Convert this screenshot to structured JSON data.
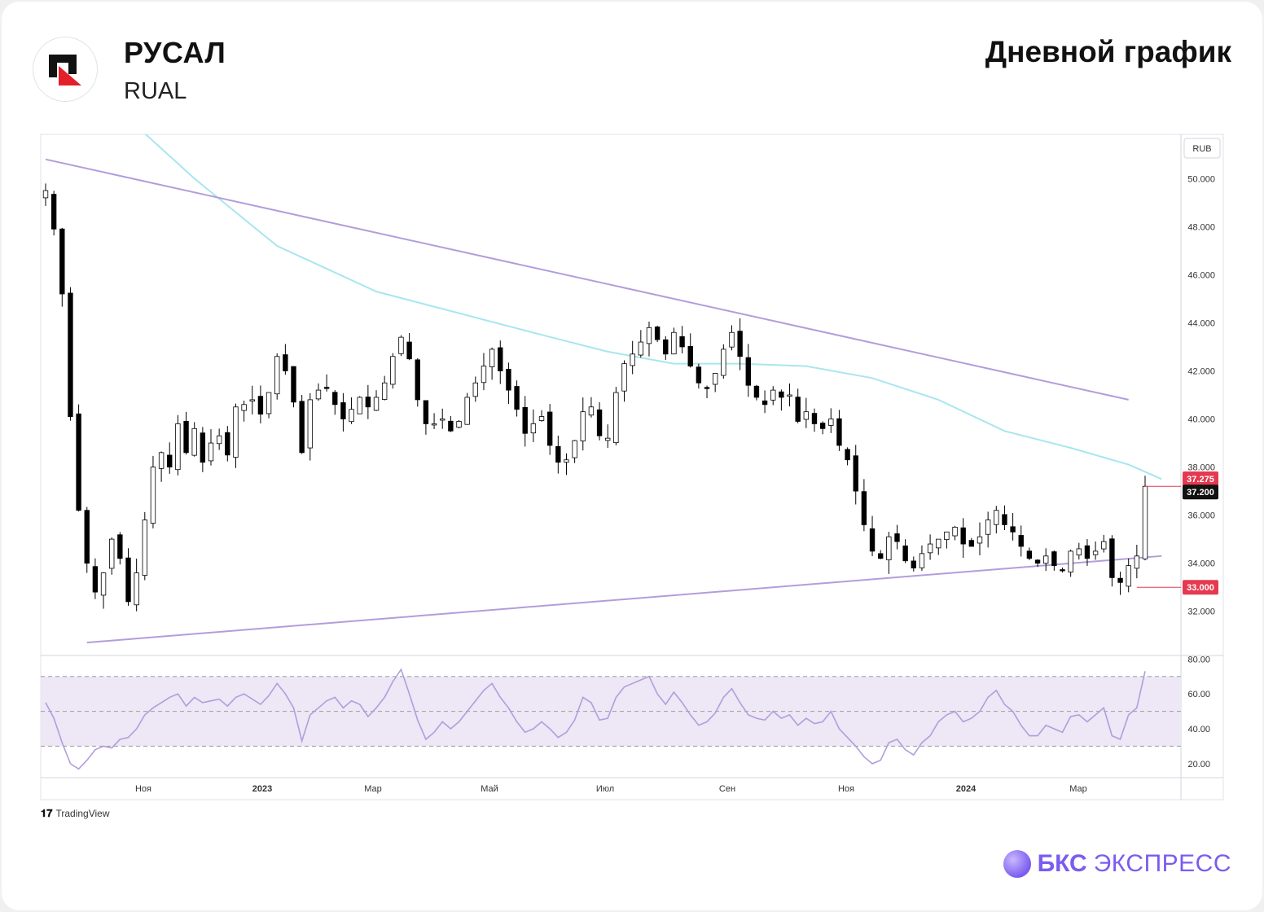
{
  "header": {
    "company_name": "РУСАЛ",
    "ticker": "RUAL",
    "chart_title": "Дневной график"
  },
  "footer": {
    "tradingview_label": "TradingView",
    "brand_bold": "БКС",
    "brand_light": "ЭКСПРЕСС"
  },
  "colors": {
    "candle_up": "#ffffff",
    "candle_down": "#000000",
    "trendline": "#b39ddb",
    "moving_average": "#a8e6ef",
    "rsi_line": "#b39ddb",
    "rsi_band": "#ede7f6",
    "price_tag_red": "#e53950",
    "price_tag_black": "#111111",
    "logo_red": "#e3202a"
  },
  "chart_data": {
    "type": "candlestick",
    "currency_label": "RUB",
    "price_axis": {
      "ylim": [
        30.5,
        51.5
      ],
      "ticks": [
        "50.000",
        "48.000",
        "46.000",
        "44.000",
        "42.000",
        "40.000",
        "38.000",
        "36.000",
        "34.000",
        "32.000"
      ]
    },
    "time_axis": {
      "labels": [
        {
          "text": "Ноя",
          "bold": false
        },
        {
          "text": "2023",
          "bold": true
        },
        {
          "text": "Мар",
          "bold": false
        },
        {
          "text": "Май",
          "bold": false
        },
        {
          "text": "Июл",
          "bold": false
        },
        {
          "text": "Сен",
          "bold": false
        },
        {
          "text": "Ноя",
          "bold": false
        },
        {
          "text": "2024",
          "bold": true
        },
        {
          "text": "Мар",
          "bold": false
        }
      ]
    },
    "price_tags": [
      {
        "label": "37.275",
        "value": 37.275,
        "style": "red"
      },
      {
        "label": "37.200",
        "value": 37.2,
        "style": "black"
      },
      {
        "label": "33.000",
        "value": 33.0,
        "style": "red"
      }
    ],
    "close_series": [
      49.5,
      47.9,
      45.2,
      40.1,
      36.2,
      34.0,
      32.8,
      33.6,
      35.0,
      34.2,
      32.4,
      33.6,
      35.8,
      38.0,
      38.6,
      38.0,
      39.8,
      38.6,
      39.6,
      38.2,
      39.0,
      39.3,
      38.5,
      40.5,
      40.6,
      40.8,
      40.2,
      41.1,
      42.6,
      42.0,
      40.7,
      38.6,
      40.8,
      41.2,
      41.3,
      40.6,
      40.0,
      40.4,
      40.9,
      40.5,
      40.9,
      41.5,
      42.6,
      43.4,
      42.5,
      40.8,
      39.8,
      39.8,
      40.0,
      39.5,
      39.9,
      40.9,
      41.5,
      42.2,
      42.9,
      42.0,
      41.2,
      40.4,
      39.4,
      39.8,
      40.1,
      38.9,
      38.2,
      38.3,
      39.1,
      40.3,
      40.5,
      39.3,
      39.2,
      41.1,
      42.3,
      42.7,
      43.2,
      43.8,
      43.3,
      42.7,
      43.6,
      43.0,
      42.2,
      41.5,
      41.3,
      41.9,
      42.9,
      43.6,
      42.6,
      41.4,
      40.9,
      40.6,
      41.2,
      40.9,
      41.0,
      39.9,
      40.3,
      39.8,
      39.6,
      40.0,
      38.9,
      38.3,
      37.0,
      35.6,
      34.5,
      34.2,
      35.1,
      34.9,
      34.1,
      33.8,
      34.4,
      34.8,
      35.0,
      35.3,
      35.5,
      34.8,
      34.7,
      35.1,
      35.8,
      36.2,
      35.6,
      35.3,
      34.7,
      34.2,
      34.0,
      34.3,
      33.9,
      33.7,
      34.5,
      34.6,
      34.2,
      34.5,
      34.9,
      33.4,
      33.2,
      33.9,
      34.3,
      37.2
    ],
    "moving_average": [
      {
        "i": 0,
        "v": 58.0
      },
      {
        "i": 10,
        "v": 52.5
      },
      {
        "i": 18,
        "v": 50.0
      },
      {
        "i": 28,
        "v": 47.2
      },
      {
        "i": 40,
        "v": 45.3
      },
      {
        "i": 50,
        "v": 44.4
      },
      {
        "i": 60,
        "v": 43.5
      },
      {
        "i": 68,
        "v": 42.8
      },
      {
        "i": 76,
        "v": 42.3
      },
      {
        "i": 84,
        "v": 42.3
      },
      {
        "i": 92,
        "v": 42.2
      },
      {
        "i": 100,
        "v": 41.7
      },
      {
        "i": 108,
        "v": 40.8
      },
      {
        "i": 116,
        "v": 39.5
      },
      {
        "i": 124,
        "v": 38.8
      },
      {
        "i": 131,
        "v": 38.1
      },
      {
        "i": 135,
        "v": 37.5
      }
    ],
    "trendlines": [
      {
        "name": "upper",
        "from": {
          "i": 0,
          "v": 50.8
        },
        "to": {
          "i": 131,
          "v": 40.8
        }
      },
      {
        "name": "lower",
        "from": {
          "i": 5,
          "v": 30.7
        },
        "to": {
          "i": 135,
          "v": 34.3
        }
      }
    ],
    "support_marker": {
      "i": 132,
      "v": 33.0
    },
    "rsi": {
      "ylim": [
        12,
        82
      ],
      "ticks": [
        "80.00",
        "60.00",
        "40.00",
        "20.00"
      ],
      "overbought": 70,
      "midline": 50,
      "oversold": 30,
      "values": [
        55,
        46,
        32,
        20,
        17,
        22,
        28,
        30,
        29,
        34,
        35,
        40,
        48,
        52,
        55,
        58,
        60,
        53,
        58,
        55,
        56,
        57,
        53,
        58,
        60,
        57,
        54,
        59,
        66,
        60,
        52,
        33,
        48,
        52,
        56,
        58,
        52,
        56,
        54,
        47,
        52,
        58,
        67,
        74,
        60,
        45,
        34,
        38,
        44,
        40,
        44,
        50,
        56,
        62,
        66,
        58,
        52,
        44,
        38,
        40,
        44,
        40,
        35,
        38,
        45,
        58,
        55,
        45,
        46,
        58,
        64,
        66,
        68,
        70,
        60,
        54,
        61,
        55,
        48,
        42,
        44,
        49,
        58,
        63,
        55,
        48,
        46,
        45,
        50,
        46,
        48,
        42,
        46,
        43,
        44,
        50,
        40,
        35,
        30,
        24,
        20,
        22,
        32,
        34,
        28,
        25,
        32,
        36,
        44,
        48,
        50,
        44,
        46,
        50,
        58,
        62,
        54,
        50,
        42,
        36,
        36,
        42,
        40,
        38,
        47,
        48,
        44,
        48,
        52,
        36,
        34,
        48,
        52,
        73
      ]
    }
  }
}
